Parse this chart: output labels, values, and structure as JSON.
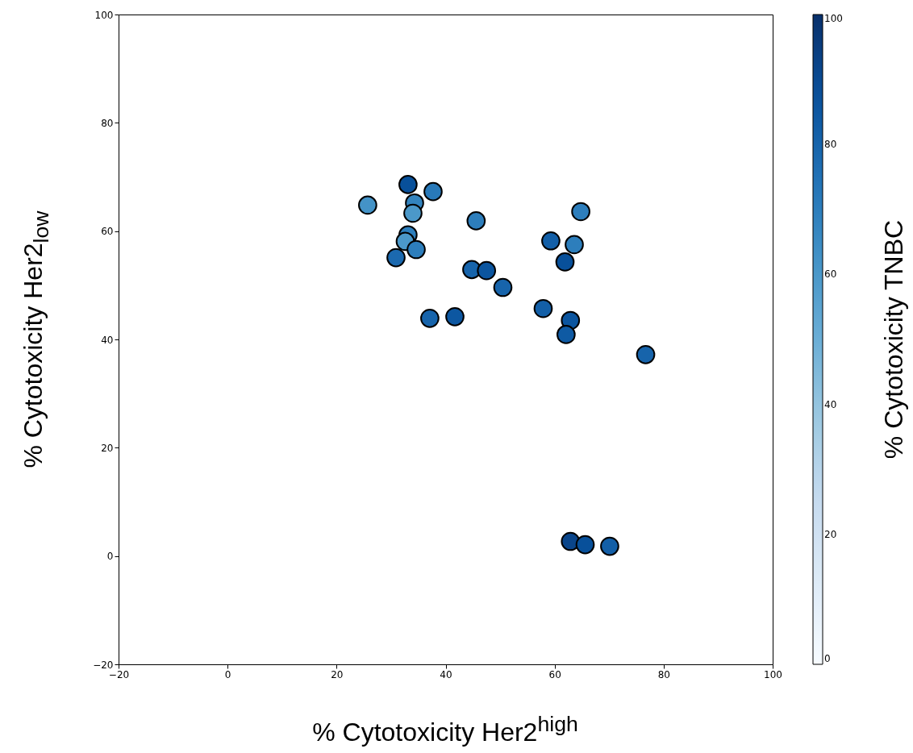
{
  "chart_data": {
    "type": "scatter",
    "xlabel": "% Cytotoxicity Her2$^{high}$",
    "ylabel": "% Cytotoxicity Her2$_{low}$",
    "clabel": "% Cytotoxicity TNBC",
    "x": [
      25.7,
      33.1,
      37.7,
      34.3,
      34.0,
      33.1,
      32.6,
      34.6,
      30.9,
      45.6,
      44.8,
      47.5,
      50.5,
      37.1,
      41.7,
      64.8,
      59.3,
      63.6,
      61.9,
      57.9,
      62.9,
      62.1,
      76.7,
      62.9,
      65.6,
      70.1
    ],
    "values": [
      64.8,
      68.6,
      67.3,
      65.2,
      63.3,
      59.3,
      58.1,
      56.6,
      55.1,
      61.9,
      52.9,
      52.7,
      49.6,
      43.9,
      44.2,
      63.6,
      58.2,
      57.5,
      54.3,
      45.7,
      43.5,
      40.9,
      37.2,
      2.7,
      2.1,
      1.8
    ],
    "cvalues": [
      62,
      88,
      72,
      68,
      60,
      70,
      60,
      70,
      78,
      70,
      80,
      86,
      80,
      80,
      85,
      70,
      82,
      70,
      88,
      82,
      86,
      84,
      80,
      92,
      88,
      82
    ],
    "xlim": [
      -20,
      100
    ],
    "xticks": [
      -20,
      0,
      20,
      40,
      60,
      80,
      100
    ],
    "ylim": [
      -20,
      100
    ],
    "yticks": [
      -20,
      0,
      20,
      40,
      60,
      80,
      100
    ],
    "clim": [
      0,
      100
    ],
    "cticks": [
      0,
      20,
      40,
      60,
      80,
      100
    ],
    "marker": "circle",
    "grid": false
  }
}
